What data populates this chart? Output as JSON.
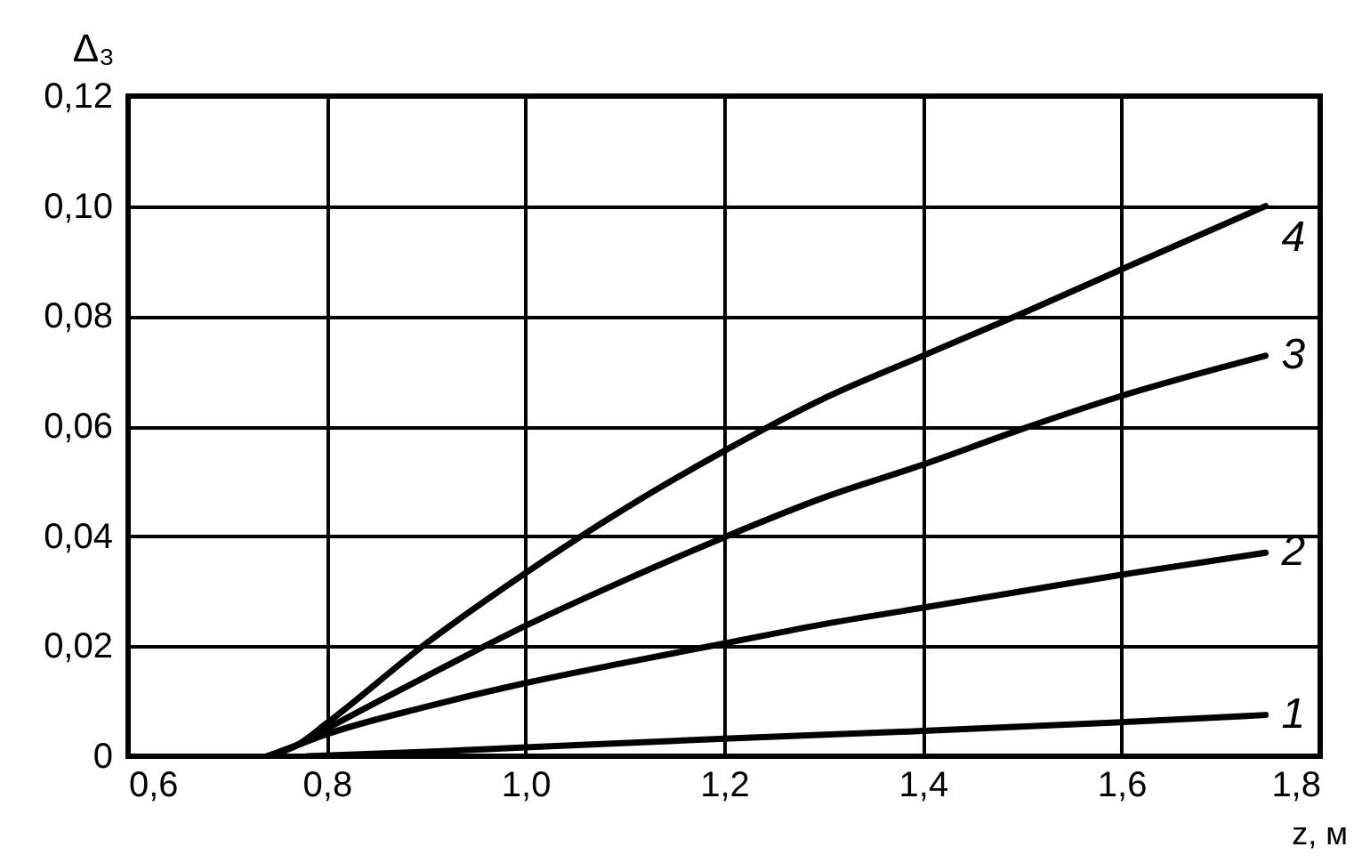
{
  "chart_data": {
    "type": "line",
    "xlabel": "z, м",
    "ylabel": "Δ₃",
    "xlim": [
      0.6,
      1.8
    ],
    "xticks": [
      {
        "value": 0.6,
        "label": "0,6"
      },
      {
        "value": 0.8,
        "label": "0,8"
      },
      {
        "value": 1.0,
        "label": "1,0"
      },
      {
        "value": 1.2,
        "label": "1,2"
      },
      {
        "value": 1.4,
        "label": "1,4"
      },
      {
        "value": 1.6,
        "label": "1,6"
      },
      {
        "value": 1.8,
        "label": "1,8"
      }
    ],
    "ylim": [
      0,
      0.12
    ],
    "yticks": [
      0,
      {
        "value": 0.02,
        "label": "0,02"
      },
      {
        "value": 0.04,
        "label": "0,04"
      },
      {
        "value": 0.06,
        "label": "0,06"
      },
      {
        "value": 0.08,
        "label": "0,08"
      },
      {
        "value": 0.1,
        "label": "0,10"
      },
      {
        "value": 0.12,
        "label": "0,12"
      }
    ],
    "grid": true,
    "series": [
      {
        "name": "1",
        "color": "#000000",
        "x": [
          0.78,
          0.9,
          1.0,
          1.2,
          1.4,
          1.6,
          1.745
        ],
        "values": [
          0,
          0.0008,
          0.0016,
          0.0032,
          0.0046,
          0.0062,
          0.0075
        ]
      },
      {
        "name": "2",
        "color": "#000000",
        "x": [
          0.74,
          0.77,
          0.8,
          0.9,
          1.0,
          1.1,
          1.2,
          1.3,
          1.4,
          1.5,
          1.6,
          1.745
        ],
        "values": [
          0,
          0.002,
          0.004,
          0.009,
          0.0133,
          0.017,
          0.0205,
          0.024,
          0.027,
          0.03,
          0.033,
          0.037
        ]
      },
      {
        "name": "3",
        "color": "#000000",
        "x": [
          0.74,
          0.77,
          0.8,
          0.9,
          1.0,
          1.1,
          1.2,
          1.3,
          1.4,
          1.5,
          1.6,
          1.745
        ],
        "values": [
          0,
          0.002,
          0.005,
          0.0145,
          0.0237,
          0.032,
          0.0398,
          0.047,
          0.053,
          0.0595,
          0.0655,
          0.0728
        ]
      },
      {
        "name": "4",
        "color": "#000000",
        "x": [
          0.74,
          0.77,
          0.8,
          0.9,
          1.0,
          1.1,
          1.2,
          1.3,
          1.4,
          1.5,
          1.6,
          1.745
        ],
        "values": [
          0,
          0.002,
          0.006,
          0.0205,
          0.0333,
          0.045,
          0.0555,
          0.065,
          0.0728,
          0.0805,
          0.0885,
          0.1
        ]
      }
    ]
  }
}
